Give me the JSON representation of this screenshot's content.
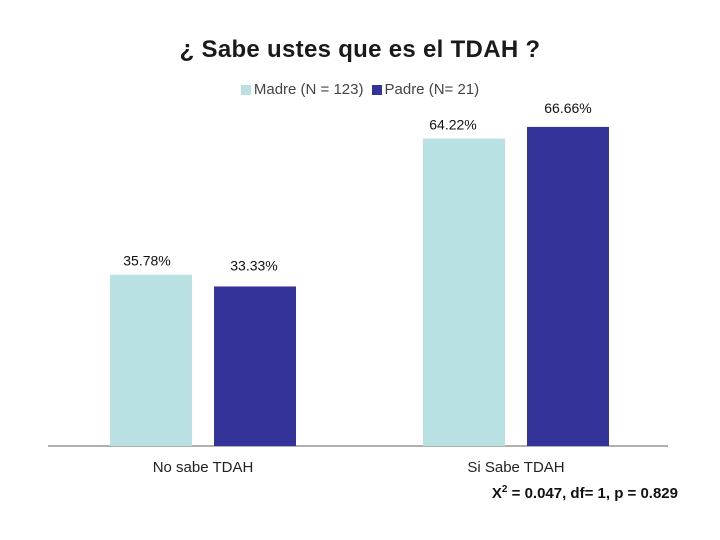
{
  "chart_data": {
    "type": "bar",
    "title": "¿ Sabe ustes que es el TDAH ?",
    "categories": [
      "No sabe TDAH",
      "Si Sabe TDAH"
    ],
    "series": [
      {
        "name": "Madre (N = 123)",
        "color": "#b9e1e3",
        "values": [
          35.78,
          64.22
        ],
        "labels": [
          "35.78%",
          "64.22%"
        ]
      },
      {
        "name": "Padre (N= 21)",
        "color": "#333399",
        "values": [
          33.33,
          66.66
        ],
        "labels": [
          "33.33%",
          "66.66%"
        ]
      }
    ],
    "ylim": [
      0,
      75
    ],
    "xlabel": "",
    "ylabel": "",
    "grid": false,
    "legend": "top-center"
  },
  "stats": {
    "symbol": "X",
    "superscript": "2",
    "text": " = 0.047, df= 1, p = 0.829"
  }
}
